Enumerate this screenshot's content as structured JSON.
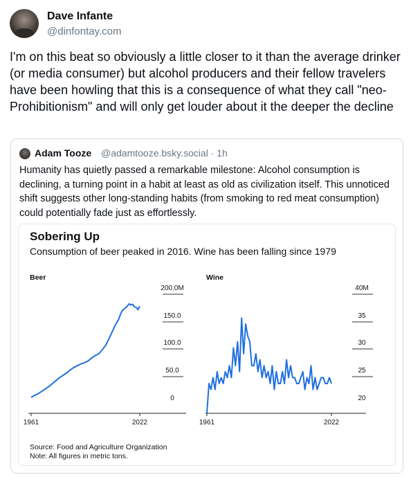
{
  "post": {
    "author_name": "Dave Infante",
    "author_handle": "@dinfontay.com",
    "text": "I'm on this beat so obviously a little closer to it than the average drinker (or media consumer) but alcohol producers and their fellow travelers have been howling that this is a consequence of what they call \"neo-Prohibitionism\" and will only get louder about it the deeper the decline"
  },
  "quote": {
    "author_name": "Adam Tooze",
    "author_handle": "@adamtooze.bsky.social",
    "time": "· 1h",
    "text": "Humanity has quietly passed a remarkable milestone: Alcohol consumption is declining, a turning point in a habit at least as old as civilization itself. This unnoticed shift suggests other long-standing habits (from smoking to red meat consumption) could potentially fade just as effortlessly."
  },
  "chart": {
    "title": "Sobering Up",
    "subtitle": "Consumption of beer peaked in 2016. Wine has been falling since 1979",
    "source_line1": "Source: Food and Agriculture Organization",
    "source_line2": "Note: All figures in metric tons."
  },
  "chart_data": [
    {
      "type": "line",
      "title": "Beer",
      "color": "#1f6fe0",
      "x": [
        1961,
        1963,
        1965,
        1967,
        1969,
        1971,
        1973,
        1975,
        1977,
        1979,
        1981,
        1983,
        1985,
        1987,
        1989,
        1991,
        1993,
        1995,
        1997,
        1999,
        2001,
        2003,
        2005,
        2007,
        2008,
        2009,
        2010,
        2011,
        2012,
        2013,
        2014,
        2015,
        2016,
        2017,
        2018,
        2019,
        2020,
        2021,
        2022
      ],
      "y": [
        27,
        30,
        33,
        37,
        41,
        45,
        50,
        55,
        60,
        64,
        68,
        73,
        77,
        80,
        83,
        85,
        88,
        93,
        97,
        100,
        107,
        115,
        127,
        140,
        147,
        152,
        157,
        165,
        172,
        175,
        177,
        180,
        184,
        182,
        183,
        179,
        178,
        174,
        180
      ],
      "xticks": [
        "1961",
        "2022"
      ],
      "yticks": [
        "200.0M",
        "150.0",
        "100.0",
        "50.0",
        "0"
      ],
      "ylim": [
        0,
        200
      ]
    },
    {
      "type": "line",
      "title": "Wine",
      "color": "#1f6fe0",
      "x": [
        1961,
        1962,
        1963,
        1964,
        1965,
        1966,
        1967,
        1968,
        1969,
        1970,
        1971,
        1972,
        1973,
        1974,
        1975,
        1976,
        1977,
        1978,
        1979,
        1980,
        1981,
        1982,
        1983,
        1984,
        1985,
        1986,
        1987,
        1988,
        1989,
        1990,
        1991,
        1992,
        1993,
        1994,
        1995,
        1996,
        1997,
        1998,
        1999,
        2000,
        2001,
        2002,
        2003,
        2004,
        2005,
        2006,
        2007,
        2008,
        2009,
        2010,
        2011,
        2012,
        2013,
        2014,
        2015,
        2016,
        2017,
        2018,
        2019,
        2020,
        2021,
        2022
      ],
      "y": [
        20,
        25,
        24,
        26,
        24,
        27,
        25,
        26,
        25,
        27,
        26,
        28,
        26,
        31,
        28,
        32,
        27,
        36,
        30,
        35,
        33,
        32,
        28,
        28,
        30,
        27,
        29,
        26,
        28,
        26,
        27,
        25,
        28,
        24,
        27,
        25,
        25,
        27,
        25,
        29,
        26,
        28,
        26,
        26,
        25,
        25,
        26,
        27,
        24,
        26,
        25,
        28,
        24,
        26,
        24,
        25,
        26,
        26,
        25,
        25,
        26,
        25
      ],
      "xticks": [
        "1961",
        "2022"
      ],
      "yticks": [
        "40M",
        "35",
        "30",
        "25",
        "20"
      ],
      "ylim": [
        20,
        40
      ]
    }
  ]
}
